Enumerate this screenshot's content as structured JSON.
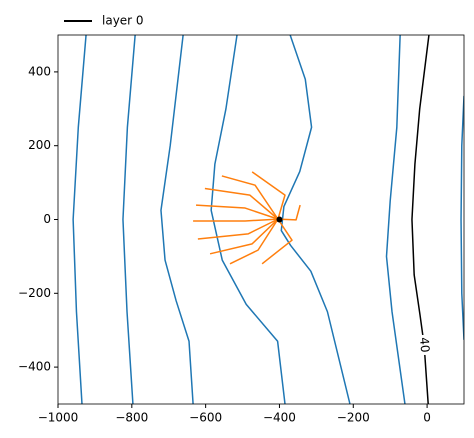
{
  "chart_data": {
    "type": "contour",
    "xlim": [
      -1000,
      100
    ],
    "ylim": [
      -500,
      500
    ],
    "xticks": [
      {
        "value": -1000,
        "label": "−1000"
      },
      {
        "value": -800,
        "label": "−800"
      },
      {
        "value": -600,
        "label": "−600"
      },
      {
        "value": -400,
        "label": "−400"
      },
      {
        "value": -200,
        "label": "−200"
      },
      0
    ],
    "yticks": [
      {
        "value": -400,
        "label": "−400"
      },
      {
        "value": -200,
        "label": "−200"
      },
      0,
      200,
      400
    ],
    "legend": "top left",
    "series": [
      {
        "name": "layer 0",
        "color": "#000000",
        "x": [
          5,
          -20,
          -33,
          -41,
          -35,
          -19,
          -8,
          3
        ],
        "y": [
          500,
          300,
          150,
          0,
          -150,
          -260,
          -340,
          -500
        ]
      }
    ],
    "contour_labels": [
      {
        "value": 40,
        "x": -8,
        "y": -340
      }
    ],
    "contours": {
      "color": "#1f77b4",
      "lines": [
        {
          "x": [
            -924,
            -945,
            -959,
            -950,
            -935
          ],
          "y": [
            500,
            250,
            0,
            -250,
            -500
          ]
        },
        {
          "x": [
            -791,
            -812,
            -824,
            -813,
            -797
          ],
          "y": [
            500,
            250,
            0,
            -250,
            -500
          ]
        },
        {
          "x": [
            -661,
            -696,
            -721,
            -710,
            -680,
            -645,
            -634
          ],
          "y": [
            500,
            200,
            25,
            -110,
            -220,
            -330,
            -500
          ]
        },
        {
          "x": [
            -515,
            -545,
            -575,
            -585,
            -555,
            -490,
            -405,
            -385
          ],
          "y": [
            500,
            300,
            150,
            25,
            -110,
            -230,
            -330,
            -500
          ]
        },
        {
          "x": [
            -371,
            -330,
            -313,
            -345,
            -388,
            -395,
            -370,
            -315,
            -270,
            -209
          ],
          "y": [
            500,
            380,
            250,
            130,
            35,
            -30,
            -70,
            -140,
            -250,
            -500
          ]
        },
        {
          "x": [
            -73,
            -82,
            -100,
            -110,
            -95,
            -60
          ],
          "y": [
            500,
            250,
            50,
            -100,
            -250,
            -500
          ]
        },
        {
          "x": [
            100,
            94,
            92,
            94,
            100
          ],
          "y": [
            335,
            200,
            0,
            -200,
            -326
          ]
        }
      ]
    },
    "pathlines": {
      "color": "#ff7f0e",
      "lines": [
        {
          "x": [
            -556,
            -466,
            -404
          ],
          "y": [
            118,
            93,
            1
          ]
        },
        {
          "x": [
            -602,
            -480,
            -404
          ],
          "y": [
            84,
            66,
            1
          ]
        },
        {
          "x": [
            -626,
            -493,
            -404
          ],
          "y": [
            39,
            31,
            1
          ]
        },
        {
          "x": [
            -634,
            -493,
            -404
          ],
          "y": [
            -4,
            -4,
            1
          ]
        },
        {
          "x": [
            -621,
            -485,
            -404
          ],
          "y": [
            -53,
            -39,
            1
          ]
        },
        {
          "x": [
            -588,
            -474,
            -404
          ],
          "y": [
            -93,
            -66,
            1
          ]
        },
        {
          "x": [
            -534,
            -458,
            -404
          ],
          "y": [
            -120,
            -83,
            1
          ]
        },
        {
          "x": [
            -474,
            -385,
            -404
          ],
          "y": [
            129,
            66,
            1
          ]
        },
        {
          "x": [
            -447,
            -366,
            -404
          ],
          "y": [
            -120,
            -56,
            1
          ]
        },
        {
          "x": [
            -344,
            -355,
            -404
          ],
          "y": [
            39,
            -1,
            1
          ]
        }
      ]
    },
    "wells": {
      "color": "#000000",
      "x": [
        -400
      ],
      "y": [
        0
      ]
    }
  }
}
